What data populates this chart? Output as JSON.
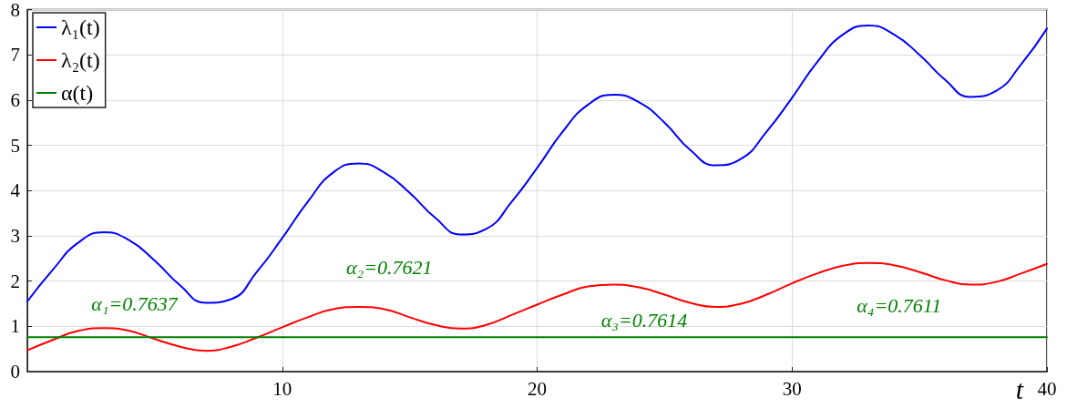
{
  "chart_data": {
    "type": "line",
    "xlabel": "t",
    "xlim": [
      0,
      40
    ],
    "xticks": [
      {
        "value": 0,
        "label": null
      },
      10,
      20,
      30,
      40
    ],
    "ylim": [
      0,
      8
    ],
    "yticks": [
      0,
      1,
      2,
      3,
      4,
      5,
      6,
      7,
      8
    ],
    "grid": true,
    "legend": "top left",
    "marker": "none",
    "line_style": "solid",
    "series": [
      {
        "name": "λ₁(t)",
        "color": "#0000ff",
        "x": [
          0,
          1,
          2,
          3,
          4,
          5,
          6,
          7,
          8,
          9,
          10,
          11,
          12,
          13,
          14,
          15,
          16,
          17,
          18,
          19,
          20,
          21,
          22,
          23,
          24,
          25,
          26,
          27,
          28,
          29,
          30,
          31,
          32,
          33,
          34,
          35,
          36,
          37,
          38,
          39,
          40
        ],
        "values": [
          1.55,
          2.25,
          2.85,
          3.08,
          2.9,
          2.45,
          1.9,
          1.52,
          1.6,
          2.2,
          2.95,
          3.75,
          4.4,
          4.6,
          4.4,
          3.95,
          3.4,
          3.03,
          3.15,
          3.75,
          4.5,
          5.3,
          5.9,
          6.12,
          5.95,
          5.5,
          4.9,
          4.56,
          4.7,
          5.3,
          6.05,
          6.85,
          7.45,
          7.65,
          7.45,
          7.0,
          6.45,
          6.07,
          6.2,
          6.8,
          7.58
        ]
      },
      {
        "name": "λ₂(t)",
        "color": "#ff0000",
        "x": [
          0,
          1,
          2,
          3,
          4,
          5,
          6,
          7,
          8,
          9,
          10,
          11,
          12,
          13,
          14,
          15,
          16,
          17,
          18,
          19,
          20,
          21,
          22,
          23,
          24,
          25,
          26,
          27,
          28,
          29,
          30,
          31,
          32,
          33,
          34,
          35,
          36,
          37,
          38,
          39,
          40
        ],
        "values": [
          0.47,
          0.7,
          0.9,
          0.96,
          0.9,
          0.72,
          0.55,
          0.46,
          0.55,
          0.75,
          0.98,
          1.2,
          1.38,
          1.43,
          1.38,
          1.2,
          1.03,
          0.95,
          1.03,
          1.25,
          1.48,
          1.7,
          1.88,
          1.92,
          1.86,
          1.7,
          1.52,
          1.43,
          1.5,
          1.7,
          1.95,
          2.17,
          2.34,
          2.4,
          2.35,
          2.2,
          2.02,
          1.92,
          1.98,
          2.17,
          2.38
        ]
      },
      {
        "name": "α(t)",
        "color": "#008000",
        "x": [
          0,
          40
        ],
        "values": [
          0.76,
          0.76
        ]
      }
    ],
    "annotations": [
      "α₁=0.7637",
      "α₂=0.7621",
      "α₃=0.7614",
      "α₄=0.7611"
    ]
  }
}
